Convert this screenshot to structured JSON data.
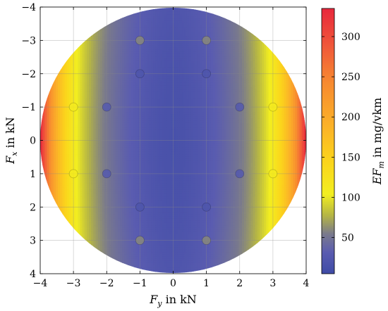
{
  "chart_data": {
    "type": "heatmap",
    "title": "",
    "xlabel": "F_y in kN",
    "ylabel": "F_x in kN",
    "xlim": [
      -4,
      4
    ],
    "ylim": [
      4,
      -4
    ],
    "y_axis_inverted": true,
    "grid": true,
    "x_ticks": [
      "−4",
      "−3",
      "−2",
      "−1",
      "0",
      "1",
      "2",
      "3",
      "4"
    ],
    "y_ticks": [
      "−4",
      "−3",
      "−2",
      "−1",
      "0",
      "1",
      "2",
      "3",
      "4"
    ],
    "domain_shape": "circle",
    "domain_radius": 4,
    "colorbar": {
      "label": "EF_m in mg/vkm",
      "range": [
        5,
        335
      ],
      "ticks": [
        "50",
        "100",
        "150",
        "200",
        "250",
        "300"
      ],
      "tick_values": [
        50,
        100,
        150,
        200,
        250,
        300
      ],
      "colormap": "blue-yellow-red"
    },
    "points": [
      {
        "x": -1,
        "y": -3,
        "value": 60
      },
      {
        "x": 1,
        "y": -3,
        "value": 60
      },
      {
        "x": -1,
        "y": -2,
        "value": 20
      },
      {
        "x": 1,
        "y": -2,
        "value": 20
      },
      {
        "x": -2,
        "y": -1,
        "value": 25
      },
      {
        "x": 2,
        "y": -1,
        "value": 25
      },
      {
        "x": -3,
        "y": -1,
        "value": 110
      },
      {
        "x": 3,
        "y": -1,
        "value": 110
      },
      {
        "x": -2,
        "y": 1,
        "value": 25
      },
      {
        "x": 2,
        "y": 1,
        "value": 25
      },
      {
        "x": -3,
        "y": 1,
        "value": 110
      },
      {
        "x": 3,
        "y": 1,
        "value": 110
      },
      {
        "x": -1,
        "y": 2,
        "value": 20
      },
      {
        "x": 1,
        "y": 2,
        "value": 20
      },
      {
        "x": -1,
        "y": 3,
        "value": 60
      },
      {
        "x": 1,
        "y": 3,
        "value": 60
      }
    ]
  }
}
